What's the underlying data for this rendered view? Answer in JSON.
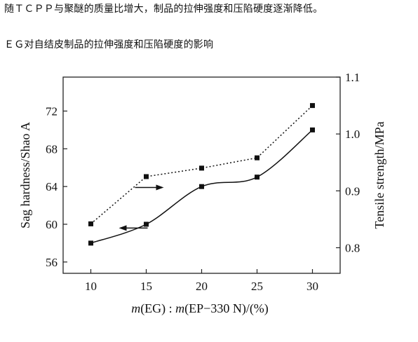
{
  "intro_text": "随ＴＣＰＰ与聚醚的质量比增大，制品的拉伸强度和压陷硬度逐渐降低。",
  "caption": "ＥＧ对自结皮制品的拉伸强度和压陷硬度的影响",
  "chart_data": {
    "type": "line",
    "title": "",
    "xlabel_parts": [
      "m",
      "(EG) : ",
      "m",
      "(EP−330 N)/(%)"
    ],
    "ylabel_left": "Sag hardness/Shao A",
    "ylabel_right": "Tensile strength/MPa",
    "x": [
      10,
      15,
      20,
      25,
      30
    ],
    "x_ticks": [
      "10",
      "15",
      "20",
      "25",
      "30"
    ],
    "y_left_ticks": [
      "56",
      "60",
      "64",
      "68",
      "72"
    ],
    "y_right_ticks": [
      "0.8",
      "0.9",
      "1.0",
      "1.1"
    ],
    "xlim": [
      7.5,
      32.5
    ],
    "ylim_left": [
      54.8,
      75.6
    ],
    "ylim_right": [
      0.755,
      1.1
    ],
    "grid": false,
    "series": [
      {
        "axis": "left",
        "style": "solid",
        "values": [
          58,
          60,
          64,
          65,
          70
        ]
      },
      {
        "axis": "right",
        "style": "dotted",
        "values": [
          0.842,
          0.925,
          0.94,
          0.958,
          1.05
        ]
      }
    ],
    "annotations": [
      {
        "type": "arrow",
        "direction": "right",
        "points_to": "right-axis",
        "near_x": 15,
        "near_y_left": 63.9
      },
      {
        "type": "arrow",
        "direction": "left",
        "points_to": "left-axis",
        "near_x": 15,
        "near_y_left": 59.6
      }
    ]
  }
}
